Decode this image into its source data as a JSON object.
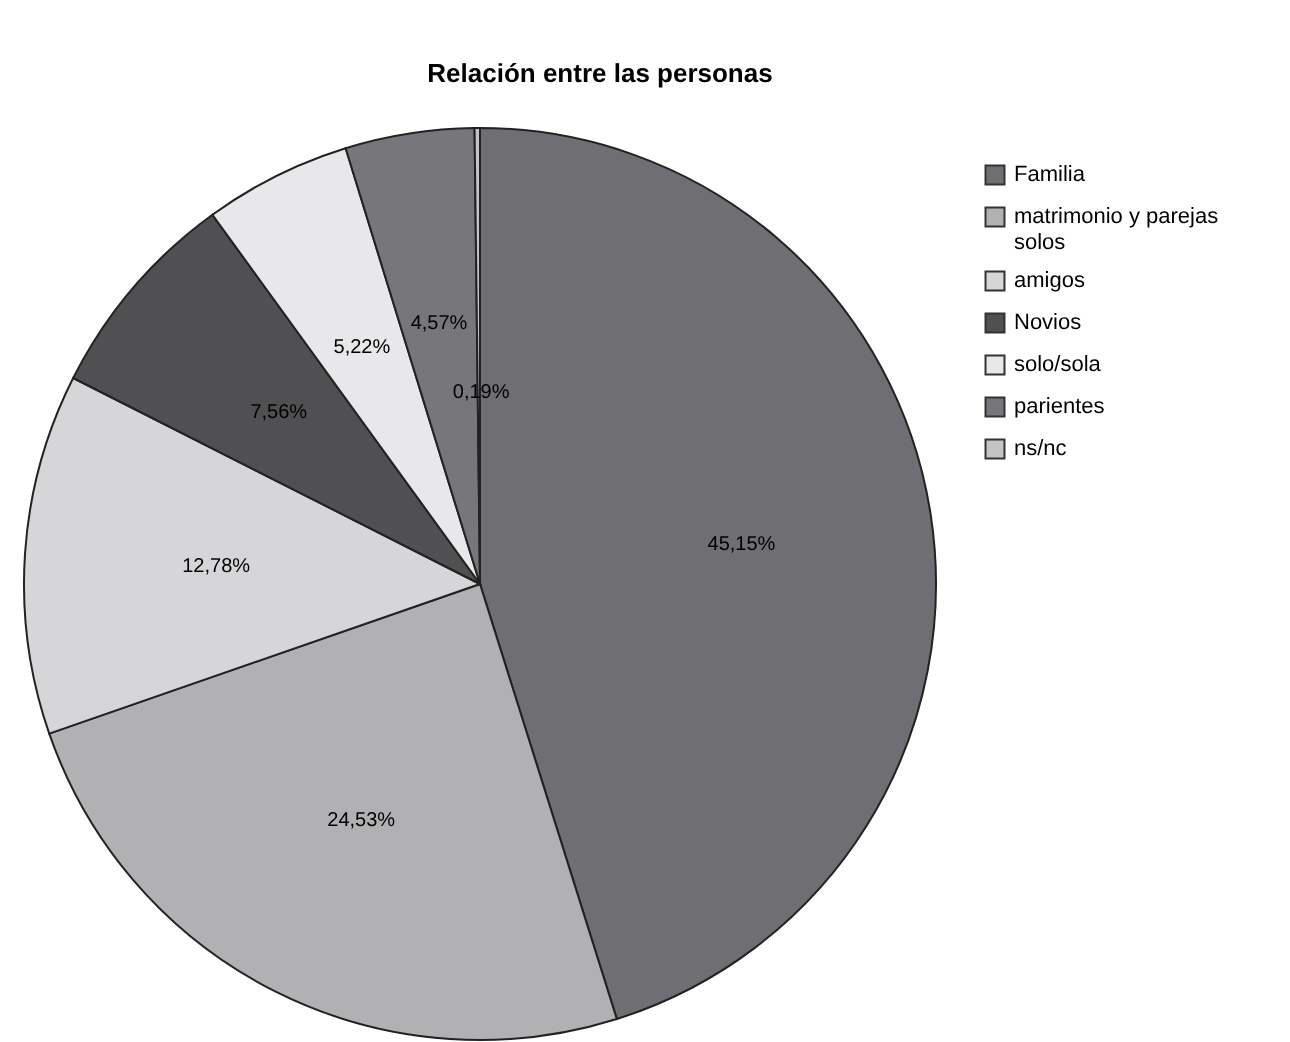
{
  "chart_data": {
    "type": "pie",
    "title": "Relación entre las personas",
    "categories": [
      "Familia",
      "matrimonio y parejas solos",
      "amigos",
      "Novios",
      "solo/sola",
      "parientes",
      "ns/nc"
    ],
    "values": [
      45.15,
      24.53,
      12.78,
      7.56,
      5.22,
      4.57,
      0.19
    ],
    "colors": [
      "#6f6f73",
      "#b1b1b4",
      "#d6d6d8",
      "#505052",
      "#e8e8ea",
      "#77777b",
      "#c4c4c6"
    ],
    "value_labels": [
      "45,15%",
      "24,53%",
      "12,78%",
      "7,56%",
      "5,22%",
      "4,57%",
      "0,19%"
    ],
    "legend": "top right"
  }
}
